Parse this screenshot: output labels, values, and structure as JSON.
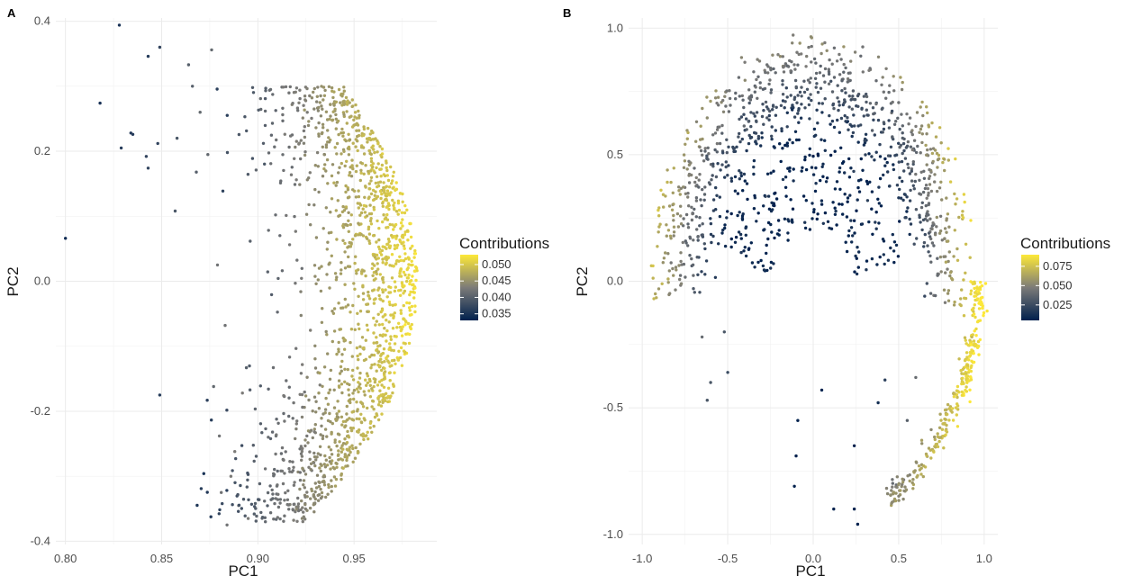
{
  "chart_data": [
    {
      "type": "scatter",
      "panel": "A",
      "title": "",
      "xlabel": "PC1",
      "ylabel": "PC2",
      "xlim": [
        0.795,
        0.993
      ],
      "ylim": [
        -0.405,
        0.405
      ],
      "xticks": [
        0.8,
        0.85,
        0.9,
        0.95
      ],
      "xtick_labels": [
        "0.80",
        "0.85",
        "0.90",
        "0.95"
      ],
      "yticks": [
        -0.4,
        -0.2,
        0.0,
        0.2,
        0.4
      ],
      "ytick_labels": [
        "-0.4",
        "-0.2",
        "0.0",
        "0.2",
        "0.4"
      ],
      "grid": true,
      "legend": {
        "title": "Contributions",
        "position": "right",
        "range": [
          0.033,
          0.053
        ],
        "ticks": [
          0.035,
          0.04,
          0.045,
          0.05
        ],
        "tick_labels": [
          "0.035",
          "0.040",
          "0.045",
          "0.050"
        ]
      },
      "color_scale": {
        "low": "#00204d",
        "mid": "#7c7b78",
        "high": "#fde838"
      },
      "points": [
        {
          "x": 0.8,
          "y": 0.066,
          "c": 0.034
        },
        {
          "x": 0.818,
          "y": 0.274,
          "c": 0.035
        },
        {
          "x": 0.828,
          "y": 0.394,
          "c": 0.035
        },
        {
          "x": 0.829,
          "y": 0.205,
          "c": 0.036
        },
        {
          "x": 0.834,
          "y": 0.228,
          "c": 0.036
        },
        {
          "x": 0.835,
          "y": 0.226,
          "c": 0.036
        },
        {
          "x": 0.842,
          "y": 0.192,
          "c": 0.037
        },
        {
          "x": 0.843,
          "y": 0.174,
          "c": 0.037
        },
        {
          "x": 0.843,
          "y": 0.346,
          "c": 0.036
        },
        {
          "x": 0.848,
          "y": 0.212,
          "c": 0.037
        },
        {
          "x": 0.849,
          "y": -0.175,
          "c": 0.036
        },
        {
          "x": 0.849,
          "y": 0.36,
          "c": 0.037
        },
        {
          "x": 0.857,
          "y": 0.108,
          "c": 0.039
        },
        {
          "x": 0.858,
          "y": 0.22,
          "c": 0.039
        },
        {
          "x": 0.864,
          "y": 0.333,
          "c": 0.04
        },
        {
          "x": 0.866,
          "y": 0.3,
          "c": 0.04
        },
        {
          "x": 0.868,
          "y": 0.168,
          "c": 0.04
        },
        {
          "x": 0.87,
          "y": 0.26,
          "c": 0.041
        },
        {
          "x": 0.874,
          "y": 0.195,
          "c": 0.041
        },
        {
          "x": 0.876,
          "y": 0.356,
          "c": 0.041
        },
        {
          "x": 0.877,
          "y": -0.162,
          "c": 0.041
        },
        {
          "x": 0.879,
          "y": 0.025,
          "c": 0.042
        },
        {
          "x": 0.88,
          "y": -0.238,
          "c": 0.042
        },
        {
          "x": 0.881,
          "y": -0.325,
          "c": 0.042
        },
        {
          "x": 0.883,
          "y": -0.068,
          "c": 0.042
        },
        {
          "x": 0.884,
          "y": -0.375,
          "c": 0.042
        },
        {
          "x": 0.886,
          "y": -0.3,
          "c": 0.043
        },
        {
          "x": 0.888,
          "y": -0.262,
          "c": 0.043
        },
        {
          "x": 0.89,
          "y": -0.345,
          "c": 0.043
        },
        {
          "x": 0.892,
          "y": -0.172,
          "c": 0.043
        },
        {
          "x": 0.895,
          "y": -0.365,
          "c": 0.043
        }
      ],
      "cloud": {
        "x_left": 0.868,
        "x_right": 0.985,
        "y_min": -0.37,
        "y_max": 0.3,
        "count": 1500
      }
    },
    {
      "type": "scatter",
      "panel": "B",
      "title": "",
      "xlabel": "PC1",
      "ylabel": "PC2",
      "xlim": [
        -1.08,
        1.08
      ],
      "ylim": [
        -1.04,
        1.04
      ],
      "xticks": [
        -1.0,
        -0.5,
        0.0,
        0.5,
        1.0
      ],
      "xtick_labels": [
        "-1.0",
        "-0.5",
        "0.0",
        "0.5",
        "1.0"
      ],
      "yticks": [
        -1.0,
        -0.5,
        0.0,
        0.5,
        1.0
      ],
      "ytick_labels": [
        "-1.0",
        "-0.5",
        "0.0",
        "0.5",
        "1.0"
      ],
      "grid": true,
      "legend": {
        "title": "Contributions",
        "position": "right",
        "range": [
          0.005,
          0.09
        ],
        "ticks": [
          0.025,
          0.05,
          0.075
        ],
        "tick_labels": [
          "0.025",
          "0.050",
          "0.075"
        ]
      },
      "color_scale": {
        "low": "#00204d",
        "mid": "#7c7b78",
        "high": "#fde838"
      },
      "points": [
        {
          "x": -0.09,
          "y": -0.55,
          "c": 0.006
        },
        {
          "x": -0.1,
          "y": -0.69,
          "c": 0.006
        },
        {
          "x": -0.11,
          "y": -0.81,
          "c": 0.006
        },
        {
          "x": 0.12,
          "y": -0.9,
          "c": 0.006
        },
        {
          "x": 0.24,
          "y": -0.9,
          "c": 0.006
        },
        {
          "x": 0.26,
          "y": -0.96,
          "c": 0.006
        },
        {
          "x": 0.24,
          "y": -0.65,
          "c": 0.006
        },
        {
          "x": 0.05,
          "y": -0.43,
          "c": 0.006
        },
        {
          "x": -0.6,
          "y": -0.4,
          "c": 0.03
        },
        {
          "x": -0.65,
          "y": -0.22,
          "c": 0.04
        },
        {
          "x": -0.62,
          "y": -0.47,
          "c": 0.03
        },
        {
          "x": -0.5,
          "y": -0.36,
          "c": 0.025
        },
        {
          "x": -0.52,
          "y": -0.2,
          "c": 0.03
        },
        {
          "x": 0.42,
          "y": -0.39,
          "c": 0.02
        },
        {
          "x": 0.38,
          "y": -0.48,
          "c": 0.012
        },
        {
          "x": 0.55,
          "y": -0.55,
          "c": 0.035
        },
        {
          "x": 0.6,
          "y": -0.38,
          "c": 0.04
        }
      ],
      "cloud": {
        "count": 1400
      }
    }
  ]
}
